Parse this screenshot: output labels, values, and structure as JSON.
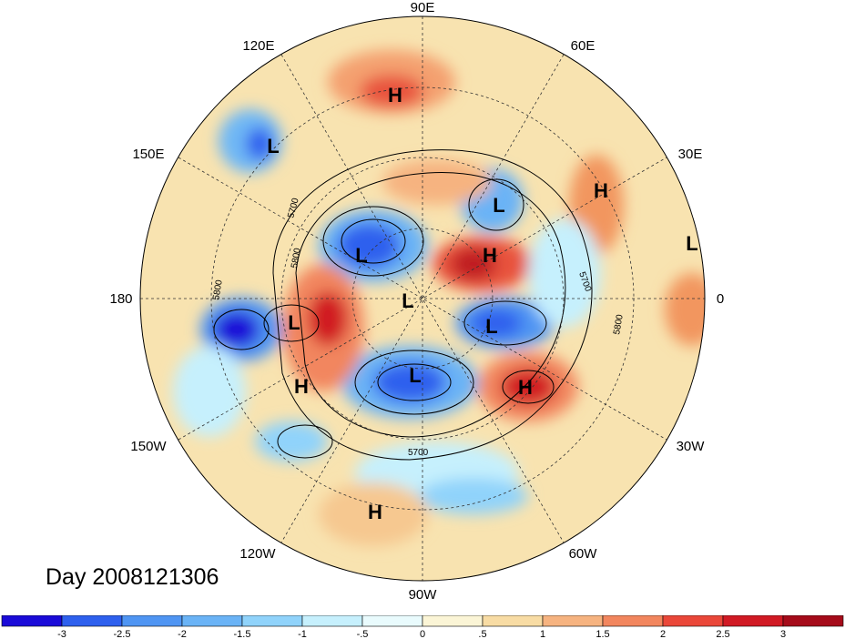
{
  "map": {
    "longitude_labels": [
      {
        "text": "90E"
      },
      {
        "text": "60E"
      },
      {
        "text": "30E"
      },
      {
        "text": "0"
      },
      {
        "text": "30W"
      },
      {
        "text": "60W"
      },
      {
        "text": "90W"
      },
      {
        "text": "120W"
      },
      {
        "text": "150W"
      },
      {
        "text": "180"
      },
      {
        "text": "150E"
      },
      {
        "text": "120E"
      }
    ],
    "pressure_centers": [
      "H",
      "L",
      "L",
      "H",
      "L",
      "L",
      "H",
      "L",
      "L",
      "L",
      "L",
      "H",
      "H",
      "H"
    ],
    "contour_labels": [
      "5700",
      "5800",
      "5700",
      "5800",
      "5800",
      "5700"
    ]
  },
  "title": "Day 2008121306",
  "colorbar": {
    "ticks": [
      "-3",
      "-2.5",
      "-2",
      "-1.5",
      "-1",
      "-.5",
      "0",
      ".5",
      "1",
      "1.5",
      "2",
      "2.5",
      "3"
    ],
    "colors": [
      "#1a0ad8",
      "#2e60ee",
      "#4f95f3",
      "#6ab3f6",
      "#90d3fb",
      "#c6f0fd",
      "#e9fbfd",
      "#fbf5d6",
      "#f8dca4",
      "#f6b380",
      "#f2865e",
      "#ea4739",
      "#d11a24",
      "#a50b1a"
    ]
  }
}
